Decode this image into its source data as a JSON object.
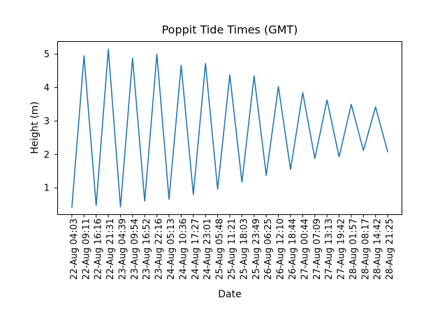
{
  "figure": {
    "title": "Poppit Tide Times (GMT)",
    "xlabel": "Date",
    "ylabel": "Height (m)",
    "background_color": "#ffffff"
  },
  "chart_data": {
    "type": "line",
    "title": "Poppit Tide Times (GMT)",
    "xlabel": "Date",
    "ylabel": "Height (m)",
    "line_color": "#1f77b4",
    "grid": false,
    "legend": "none",
    "categories": [
      "22-Aug 04:03",
      "22-Aug 09:11",
      "22-Aug 16:16",
      "22-Aug 21:31",
      "23-Aug 04:39",
      "23-Aug 09:54",
      "23-Aug 16:52",
      "23-Aug 22:16",
      "24-Aug 05:13",
      "24-Aug 10:36",
      "24-Aug 17:27",
      "24-Aug 23:01",
      "25-Aug 05:48",
      "25-Aug 11:21",
      "25-Aug 18:03",
      "25-Aug 23:49",
      "26-Aug 06:25",
      "26-Aug 12:10",
      "26-Aug 18:44",
      "27-Aug 00:44",
      "27-Aug 07:09",
      "27-Aug 13:13",
      "27-Aug 19:42",
      "28-Aug 01:57",
      "28-Aug 08:17",
      "28-Aug 14:42",
      "28-Aug 21:25"
    ],
    "values": [
      0.42,
      4.95,
      0.47,
      5.15,
      0.43,
      4.88,
      0.6,
      5.0,
      0.66,
      4.67,
      0.8,
      4.72,
      0.96,
      4.38,
      1.17,
      4.35,
      1.38,
      4.03,
      1.55,
      3.85,
      1.88,
      3.63,
      1.93,
      3.5,
      2.12,
      3.42,
      2.08
    ],
    "yticks": [
      1,
      2,
      3,
      4,
      5
    ],
    "ylim": [
      0.2,
      5.38
    ],
    "xlim": [
      -1.2,
      27.2
    ]
  }
}
